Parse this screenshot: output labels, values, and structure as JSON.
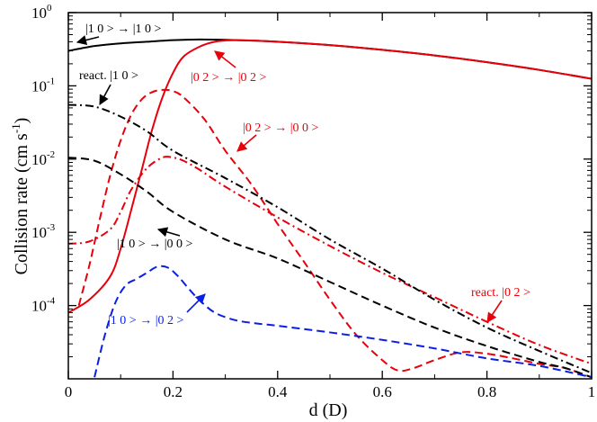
{
  "chart_data": {
    "type": "line",
    "xlabel": "d (D)",
    "ylabel": "Collision rate (cm s",
    "ylabel_sup": "-1",
    "ylabel_close": ")",
    "xlim": [
      0,
      1
    ],
    "ylim_log10": [
      -5,
      0
    ],
    "yscale": "log",
    "x_ticks": [
      {
        "value": 0,
        "label": "0"
      },
      {
        "value": 0.2,
        "label": "0.2"
      },
      {
        "value": 0.4,
        "label": "0.4"
      },
      {
        "value": 0.6,
        "label": "0.6"
      },
      {
        "value": 0.8,
        "label": "0.8"
      },
      {
        "value": 1,
        "label": "1"
      }
    ],
    "y_ticks": [
      {
        "exp": 0,
        "base": "10",
        "sup": "0"
      },
      {
        "exp": -1,
        "base": "10",
        "sup": "-1"
      },
      {
        "exp": -2,
        "base": "10",
        "sup": "-2"
      },
      {
        "exp": -3,
        "base": "10",
        "sup": "-3"
      },
      {
        "exp": -4,
        "base": "10",
        "sup": "-4"
      }
    ],
    "series": [
      {
        "name": "|1 0 > → |1 0 >",
        "color": "#000000",
        "dash": "solid",
        "x": [
          0.0,
          0.05,
          0.1,
          0.15,
          0.2,
          0.25,
          0.3,
          0.35,
          0.4,
          0.5,
          0.6,
          0.7,
          0.8,
          0.9,
          1.0
        ],
        "y": [
          0.3,
          0.35,
          0.38,
          0.4,
          0.42,
          0.43,
          0.425,
          0.415,
          0.4,
          0.36,
          0.31,
          0.26,
          0.21,
          0.165,
          0.125
        ]
      },
      {
        "name": "|0 2 > → |0 2 >",
        "color": "#e8000b",
        "dash": "solid",
        "x": [
          0.0,
          0.04,
          0.08,
          0.1,
          0.12,
          0.14,
          0.16,
          0.18,
          0.2,
          0.22,
          0.25,
          0.28,
          0.32,
          0.4,
          0.5,
          0.6,
          0.7,
          0.8,
          0.9,
          1.0
        ],
        "y": [
          8e-05,
          0.00012,
          0.00025,
          0.0006,
          0.002,
          0.007,
          0.025,
          0.07,
          0.15,
          0.25,
          0.34,
          0.4,
          0.42,
          0.4,
          0.36,
          0.31,
          0.26,
          0.21,
          0.165,
          0.125
        ]
      },
      {
        "name": "|0 2 > → |0 0 >",
        "color": "#e8000b",
        "dash": "dash",
        "x": [
          0.02,
          0.04,
          0.06,
          0.08,
          0.1,
          0.12,
          0.14,
          0.16,
          0.18,
          0.2,
          0.22,
          0.26,
          0.3,
          0.35,
          0.4,
          0.45,
          0.5,
          0.55,
          0.6,
          0.63,
          0.66,
          0.7,
          0.75,
          0.8,
          0.85,
          0.9,
          0.95,
          0.99
        ],
        "y": [
          0.0001,
          0.00035,
          0.0015,
          0.006,
          0.018,
          0.04,
          0.065,
          0.082,
          0.088,
          0.085,
          0.07,
          0.035,
          0.013,
          0.0045,
          0.0013,
          0.0004,
          0.00012,
          4e-05,
          1.8e-05,
          1.3e-05,
          1.4e-05,
          1.8e-05,
          2.3e-05,
          2.2e-05,
          1.9e-05,
          1.6e-05,
          1.4e-05,
          1.1e-05
        ]
      },
      {
        "name": "react. |0 2 >",
        "color": "#e8000b",
        "dash": "dashdot",
        "x": [
          0.0,
          0.04,
          0.08,
          0.1,
          0.12,
          0.15,
          0.18,
          0.2,
          0.22,
          0.25,
          0.3,
          0.4,
          0.5,
          0.6,
          0.7,
          0.8,
          0.9,
          1.0
        ],
        "y": [
          0.0007,
          0.00075,
          0.0011,
          0.0019,
          0.0038,
          0.0075,
          0.0105,
          0.0105,
          0.0095,
          0.0072,
          0.0042,
          0.0016,
          0.00065,
          0.00028,
          0.00013,
          6e-05,
          2.9e-05,
          1.6e-05
        ]
      },
      {
        "name": "react. |1 0 >",
        "color": "#000000",
        "dash": "dashdot",
        "x": [
          0.0,
          0.05,
          0.1,
          0.15,
          0.2,
          0.3,
          0.4,
          0.5,
          0.6,
          0.7,
          0.8,
          0.9,
          1.0
        ],
        "y": [
          0.055,
          0.052,
          0.038,
          0.024,
          0.013,
          0.0055,
          0.0022,
          0.0008,
          0.00032,
          0.00012,
          5e-05,
          2.4e-05,
          1.2e-05
        ]
      },
      {
        "name": "|1 0 > → |0 0 >",
        "color": "#000000",
        "dash": "dash",
        "x": [
          0.0,
          0.05,
          0.1,
          0.15,
          0.2,
          0.3,
          0.4,
          0.5,
          0.6,
          0.7,
          0.8,
          0.9,
          0.95,
          1.0
        ],
        "y": [
          0.0105,
          0.0095,
          0.0062,
          0.0036,
          0.0019,
          0.0008,
          0.00044,
          0.00021,
          0.0001,
          5e-05,
          2.8e-05,
          1.7e-05,
          1.4e-05,
          1.05e-05
        ]
      },
      {
        "name": "|1 0 > → |0 2 >",
        "color": "#0a1ee6",
        "dash": "dash",
        "x": [
          0.05,
          0.07,
          0.09,
          0.11,
          0.13,
          0.15,
          0.17,
          0.19,
          0.21,
          0.23,
          0.25,
          0.28,
          0.32,
          0.36,
          0.4,
          0.5,
          0.6,
          0.7,
          0.8,
          0.9,
          1.0
        ],
        "y": [
          1.05e-05,
          4e-05,
          0.00011,
          0.00019,
          0.00023,
          0.00028,
          0.00034,
          0.00033,
          0.00025,
          0.00017,
          0.00012,
          8e-05,
          6.3e-05,
          5.7e-05,
          5.3e-05,
          4.3e-05,
          3.4e-05,
          2.6e-05,
          1.9e-05,
          1.5e-05,
          1.05e-05
        ]
      }
    ],
    "annotations": [
      {
        "text": "|1 0 > → |1 0 >",
        "color": "#000000"
      },
      {
        "text": "|0 2 > → |0 2 >",
        "color": "#e8000b"
      },
      {
        "text": "react. |1 0 >",
        "color": "#000000"
      },
      {
        "text": "|0 2 > → |0 0 >",
        "color": "#e8000b"
      },
      {
        "text": "|1 0 > → |0 0 >",
        "color": "#000000"
      },
      {
        "text": "react. |0 2 >",
        "color": "#e8000b"
      },
      {
        "text": "|1 0 > → |0 2 >",
        "color": "#0a1ee6"
      }
    ]
  }
}
